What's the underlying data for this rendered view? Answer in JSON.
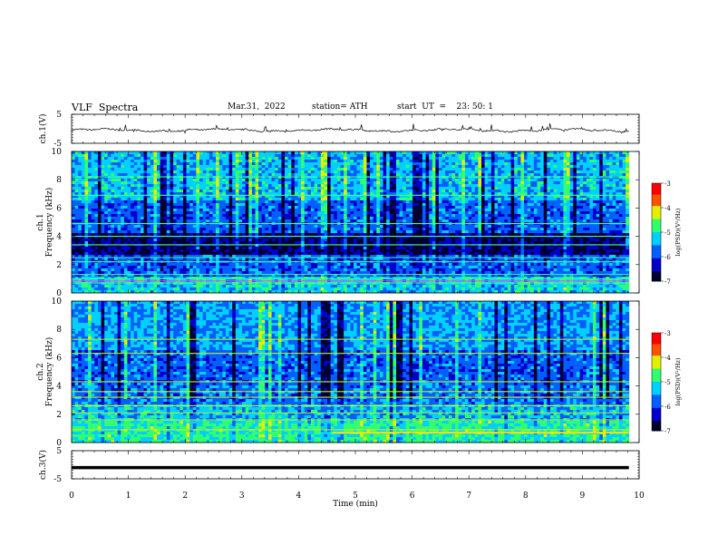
{
  "header": {
    "title": "VLF  Spectra",
    "date": "Mar.31,  2022",
    "station": "station= ATH",
    "start": "start  UT  =    23: 50: 1"
  },
  "chart_data": [
    {
      "type": "line",
      "title": "",
      "ylabel": "ch.1(V)",
      "ylim": [
        -5,
        5
      ],
      "y_ticks": [
        "5",
        "-5"
      ],
      "baseline": -0.5
    },
    {
      "type": "heatmap",
      "ylabel": "ch.1\nFrequency  (kHz)",
      "ylim": [
        0,
        10
      ],
      "y_ticks": [
        "0",
        "2",
        "4",
        "6",
        "8",
        "10"
      ],
      "colorbar": {
        "label": "log(PSD)(V²/Hz)",
        "range": [
          -7,
          -3
        ],
        "ticks": [
          "-3",
          "-4",
          "-5",
          "-6",
          "-7"
        ]
      }
    },
    {
      "type": "heatmap",
      "ylabel": "ch.2\nFrequency  (kHz)",
      "ylim": [
        0,
        10
      ],
      "y_ticks": [
        "0",
        "2",
        "4",
        "6",
        "8",
        "10"
      ],
      "colorbar": {
        "label": "log(PSD)(V²/Hz)",
        "range": [
          -7,
          -3
        ],
        "ticks": [
          "-3",
          "-4",
          "-5",
          "-6",
          "-7"
        ]
      }
    },
    {
      "type": "line",
      "ylabel": "ch.3(V)",
      "ylim": [
        -5,
        5
      ],
      "y_ticks": [
        "5",
        "-5"
      ],
      "baseline": -1
    }
  ],
  "x_axis": {
    "label": "Time  (min)",
    "range": [
      0,
      10
    ],
    "ticks": [
      "0",
      "1",
      "2",
      "3",
      "4",
      "5",
      "6",
      "7",
      "8",
      "9",
      "10"
    ],
    "data_end": 9.82
  },
  "colors": {
    "colormap": [
      "#000030",
      "#0000cc",
      "#0060ff",
      "#00d0ff",
      "#30ff70",
      "#e0f000",
      "#ff5000",
      "#ff0000",
      "#ffffff"
    ]
  }
}
